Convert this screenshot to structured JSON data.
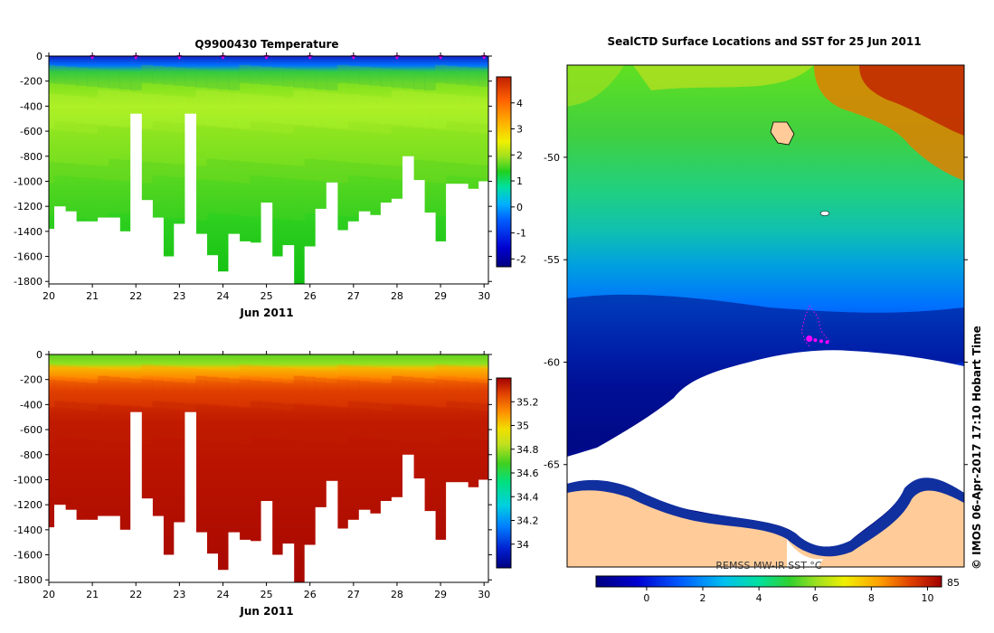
{
  "chart_data": [
    {
      "type": "heatmap",
      "title": "Q9900430  Temperature",
      "xlabel": "Jun 2011",
      "ylabel": "",
      "x_ticks": [
        "20",
        "21",
        "22",
        "23",
        "24",
        "25",
        "26",
        "27",
        "28",
        "29",
        "30"
      ],
      "y_ticks": [
        "0",
        "-200",
        "-400",
        "-600",
        "-800",
        "-1000",
        "-1200",
        "-1400",
        "-1600",
        "-1800"
      ],
      "xlim": [
        20,
        30.1
      ],
      "ylim": [
        -1820,
        0
      ],
      "colorbar": {
        "ticks": [
          "4",
          "3",
          "2",
          "1",
          "0",
          "-1",
          "-2"
        ],
        "range": [
          -2.3,
          5
        ]
      },
      "profile_marker_days": [
        21,
        22,
        23,
        24,
        25,
        26,
        27,
        28,
        29,
        30
      ],
      "profile_days": [
        20.0,
        20.25,
        20.5,
        20.75,
        21.0,
        21.25,
        21.5,
        21.75,
        22.0,
        22.25,
        22.5,
        22.75,
        23.0,
        23.25,
        23.5,
        23.75,
        24.0,
        24.25,
        24.5,
        24.75,
        25.0,
        25.25,
        25.5,
        25.75,
        26.0,
        26.25,
        26.5,
        26.75,
        27.0,
        27.25,
        27.5,
        27.75,
        28.0,
        28.25,
        28.5,
        28.75,
        29.0,
        29.25,
        29.5,
        29.75,
        30.0
      ],
      "profile_max_depths": [
        1380,
        1200,
        1240,
        1320,
        1320,
        1290,
        1290,
        1400,
        460,
        1150,
        1290,
        1600,
        1340,
        460,
        1420,
        1590,
        1720,
        1420,
        1480,
        1490,
        1170,
        1600,
        1510,
        1830,
        1520,
        1220,
        1010,
        1390,
        1320,
        1240,
        1270,
        1170,
        1140,
        800,
        990,
        1250,
        1480,
        1020,
        1020,
        1060,
        1000
      ],
      "colormap": [
        "#000080",
        "#0000c8",
        "#0040ff",
        "#0090ff",
        "#00d0e0",
        "#00e0a0",
        "#10d020",
        "#80e020",
        "#b0f020",
        "#f0f000",
        "#ffc000",
        "#ff8000",
        "#e04000",
        "#a00000"
      ]
    },
    {
      "type": "heatmap",
      "title": "",
      "xlabel": "Jun 2011",
      "ylabel": "",
      "x_ticks": [
        "20",
        "21",
        "22",
        "23",
        "24",
        "25",
        "26",
        "27",
        "28",
        "29",
        "30"
      ],
      "y_ticks": [
        "0",
        "-200",
        "-400",
        "-600",
        "-800",
        "-1000",
        "-1200",
        "-1400",
        "-1600",
        "-1800"
      ],
      "xlim": [
        20,
        30.1
      ],
      "ylim": [
        -1820,
        0
      ],
      "colorbar": {
        "ticks": [
          "35.2",
          "35",
          "34.8",
          "34.6",
          "34.4",
          "34.2",
          "34"
        ],
        "range": [
          33.8,
          35.4
        ]
      }
    },
    {
      "type": "heatmap",
      "title": "SealCTD Surface Locations and SST for 25 Jun 2011",
      "xlabel": "",
      "ylabel": "",
      "y_ticks": [
        "-50",
        "-55",
        "-60",
        "-65"
      ],
      "ylim": [
        -70,
        -45.5
      ],
      "colorbar": {
        "label": "REMSS MW-IR SST °C",
        "ticks": [
          "0",
          "2",
          "4",
          "6",
          "8",
          "10"
        ],
        "range": [
          -1.8,
          10.5
        ]
      },
      "track_points": [
        [
          0.61,
          0.56
        ],
        [
          0.6,
          0.55
        ],
        [
          0.59,
          0.53
        ],
        [
          0.6,
          0.5
        ],
        [
          0.61,
          0.48
        ],
        [
          0.63,
          0.5
        ],
        [
          0.64,
          0.53
        ],
        [
          0.66,
          0.55
        ]
      ],
      "seal_dive_locations": [
        [
          0.61,
          0.545
        ],
        [
          0.625,
          0.548
        ],
        [
          0.64,
          0.55
        ],
        [
          0.655,
          0.552
        ]
      ]
    }
  ],
  "side_label": "© IMOS 06-Apr-2017 17:10 Hobart Time",
  "colorbar_max_label": "85"
}
